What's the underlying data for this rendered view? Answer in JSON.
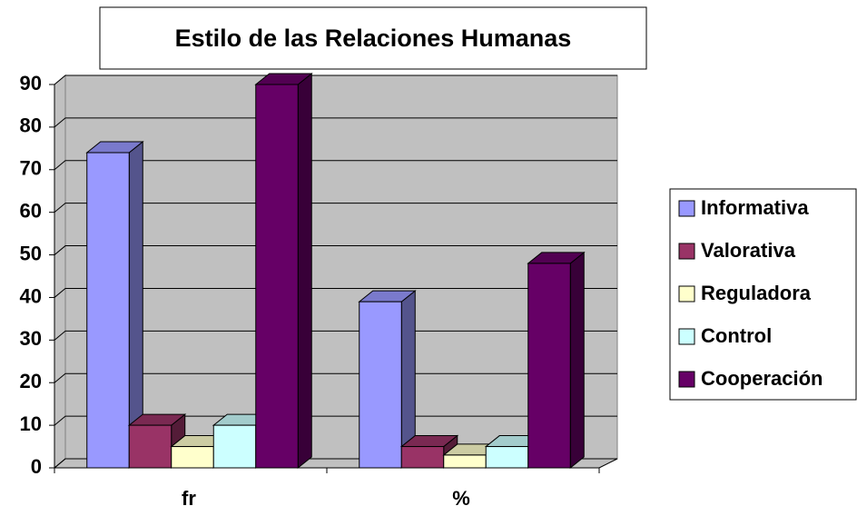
{
  "chart_data": {
    "type": "bar3d",
    "title": "Estilo de las Relaciones Humanas",
    "categories": [
      "fr",
      "%"
    ],
    "series": [
      {
        "name": "Informativa",
        "color": "#9999ff",
        "values": [
          74,
          39
        ]
      },
      {
        "name": "Valorativa",
        "color": "#993366",
        "values": [
          10,
          5
        ]
      },
      {
        "name": "Reguladora",
        "color": "#ffffcc",
        "values": [
          5,
          3
        ]
      },
      {
        "name": "Control",
        "color": "#ccffff",
        "values": [
          10,
          5
        ]
      },
      {
        "name": "Cooperación",
        "color": "#660066",
        "values": [
          90,
          48
        ]
      }
    ],
    "ylim": [
      0,
      90
    ],
    "yticks": [
      0,
      10,
      20,
      30,
      40,
      50,
      60,
      70,
      80,
      90
    ],
    "grid": true,
    "legend": "right"
  }
}
